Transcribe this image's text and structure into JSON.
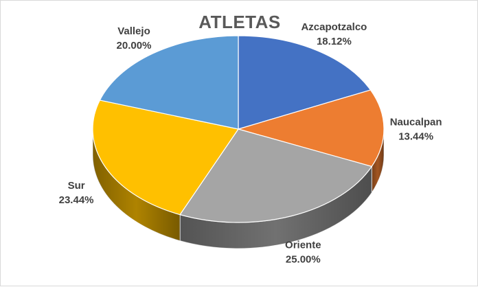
{
  "chart_data": {
    "type": "pie",
    "title": "ATLETAS",
    "categories": [
      "Azcapotzalco",
      "Naucalpan",
      "Oriente",
      "Sur",
      "Vallejo"
    ],
    "values": [
      18.12,
      13.44,
      25.0,
      23.44,
      20.0
    ],
    "value_labels": [
      "18.12%",
      "13.44%",
      "25.00%",
      "23.44%",
      "20.00%"
    ],
    "colors": [
      "#4472C4",
      "#ED7D31",
      "#A5A5A5",
      "#FFC000",
      "#5B9BD5"
    ],
    "style": "3d",
    "legend": "none"
  }
}
